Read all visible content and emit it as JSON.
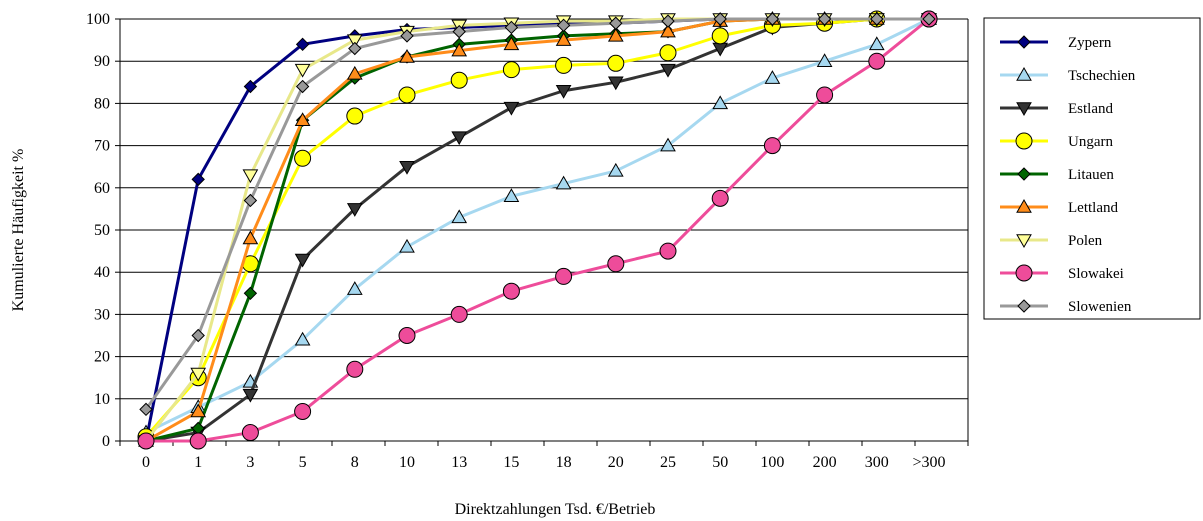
{
  "chart_data": {
    "type": "line",
    "title": "",
    "xlabel": "Direktzahlungen Tsd. €/Betrieb",
    "ylabel": "Kumulierte Häufigkeit %",
    "ylim": [
      0,
      100
    ],
    "yticks": [
      0,
      10,
      20,
      30,
      40,
      50,
      60,
      70,
      80,
      90,
      100
    ],
    "grid": true,
    "legend_position": "right",
    "categories": [
      "0",
      "1",
      "3",
      "5",
      "8",
      "10",
      "13",
      "15",
      "18",
      "20",
      "25",
      "50",
      "100",
      "200",
      "300",
      ">300"
    ],
    "series": [
      {
        "name": "Zypern",
        "color": "#000080",
        "marker": "diamond",
        "marker_fill": "#000080",
        "values": [
          0,
          62,
          84,
          94,
          96,
          97.5,
          98,
          98.5,
          99,
          99,
          99.5,
          100,
          100,
          100,
          100,
          100
        ]
      },
      {
        "name": "Tschechien",
        "color": "#a6d8f0",
        "marker": "triangle-up",
        "marker_fill": "#a6d8f0",
        "values": [
          2,
          8,
          14,
          24,
          36,
          46,
          53,
          58,
          61,
          64,
          70,
          80,
          86,
          90,
          94,
          100
        ]
      },
      {
        "name": "Estland",
        "color": "#333333",
        "marker": "triangle-down",
        "marker_fill": "#333333",
        "values": [
          0,
          2,
          11,
          43,
          55,
          65,
          72,
          79,
          83,
          85,
          88,
          93,
          98,
          99,
          100,
          100
        ]
      },
      {
        "name": "Ungarn",
        "color": "#ffff00",
        "marker": "circle",
        "marker_fill": "#ffff00",
        "values": [
          1,
          15,
          42,
          67,
          77,
          82,
          85.5,
          88,
          89,
          89.5,
          92,
          96,
          98.5,
          99,
          100,
          100
        ]
      },
      {
        "name": "Litauen",
        "color": "#006400",
        "marker": "diamond",
        "marker_fill": "#006400",
        "values": [
          0,
          3,
          35,
          76,
          86,
          91,
          94,
          95,
          96,
          96.5,
          97,
          99.5,
          100,
          100,
          100,
          100
        ]
      },
      {
        "name": "Lettland",
        "color": "#ff8c1a",
        "marker": "triangle-up",
        "marker_fill": "#ff8c1a",
        "values": [
          0,
          7,
          48,
          76,
          87,
          91,
          92.5,
          94,
          95,
          96,
          97,
          99.5,
          100,
          100,
          100,
          100
        ]
      },
      {
        "name": "Polen",
        "color": "#e8e88a",
        "marker": "triangle-down",
        "marker_fill": "#ffff99",
        "values": [
          0,
          16,
          63,
          88,
          95,
          97,
          98.5,
          99,
          99.5,
          99.5,
          100,
          100,
          100,
          100,
          100,
          100
        ]
      },
      {
        "name": "Slowakei",
        "color": "#ee4c9a",
        "marker": "circle",
        "marker_fill": "#ee4c9a",
        "values": [
          0,
          0,
          2,
          7,
          17,
          25,
          30,
          35.5,
          39,
          42,
          45,
          57.5,
          70,
          82,
          90,
          100
        ]
      },
      {
        "name": "Slowenien",
        "color": "#999999",
        "marker": "diamond",
        "marker_fill": "#999999",
        "values": [
          7.5,
          25,
          57,
          84,
          93,
          96,
          97,
          98,
          98.5,
          99,
          99.5,
          100,
          100,
          100,
          100,
          100
        ]
      }
    ]
  }
}
